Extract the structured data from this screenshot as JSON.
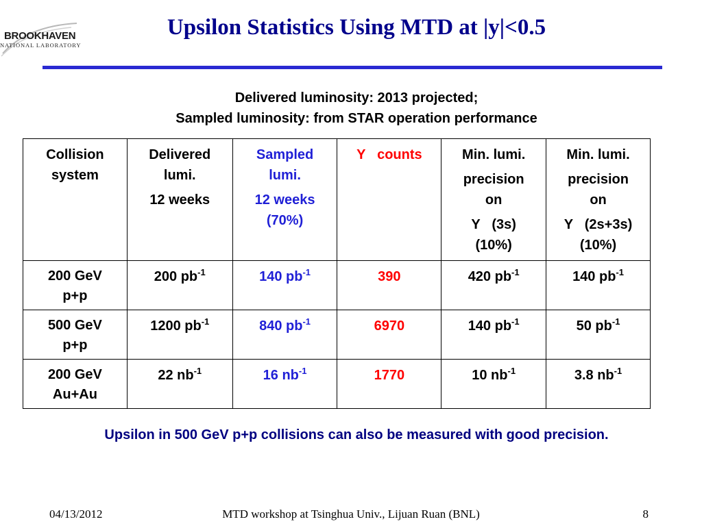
{
  "logo": {
    "main": "BROOKHAVEN",
    "sub": "NATIONAL LABORATORY"
  },
  "title": "Upsilon Statistics Using MTD at |y|<0.5",
  "subtitle": {
    "line1": "Delivered luminosity: 2013 projected;",
    "line2": "Sampled luminosity: from STAR operation performance"
  },
  "table": {
    "header": {
      "collision": [
        "Collision",
        "system"
      ],
      "delivered": [
        "Delivered",
        "lumi.",
        "12 weeks"
      ],
      "sampled": [
        "Sampled",
        "lumi.",
        "12 weeks",
        "(70%)"
      ],
      "counts": {
        "symbol": "Υ",
        "text": "counts"
      },
      "min1": [
        "Min. lumi.",
        "precision",
        "on",
        "Υ   (3s)",
        "(10%)"
      ],
      "min2": [
        "Min. lumi.",
        "precision",
        "on",
        "Υ   (2s+3s)",
        "(10%)"
      ]
    },
    "rows": [
      {
        "system": [
          "200 GeV",
          "p+p"
        ],
        "delivered": {
          "value": "200 pb",
          "exp": "-1"
        },
        "sampled": {
          "value": "140 pb",
          "exp": "-1"
        },
        "counts": "390",
        "min1": {
          "value": "420 pb",
          "exp": "-1"
        },
        "min2": {
          "value": "140 pb",
          "exp": "-1"
        }
      },
      {
        "system": [
          "500 GeV",
          "p+p"
        ],
        "delivered": {
          "value": "1200 pb",
          "exp": "-1"
        },
        "sampled": {
          "value": "840 pb",
          "exp": "-1"
        },
        "counts": "6970",
        "min1": {
          "value": "140 pb",
          "exp": "-1"
        },
        "min2": {
          "value": "50 pb",
          "exp": "-1"
        }
      },
      {
        "system": [
          "200 GeV",
          "Au+Au"
        ],
        "delivered": {
          "value": "22 nb",
          "exp": "-1"
        },
        "sampled": {
          "value": "16 nb",
          "exp": "-1"
        },
        "counts": "1770",
        "min1": {
          "value": "10 nb",
          "exp": "-1"
        },
        "min2": {
          "value": "3.8 nb",
          "exp": "-1"
        }
      }
    ]
  },
  "conclusion": "Upsilon in 500 GeV p+p collisions can also be measured with good precision.",
  "footer": {
    "date": "04/13/2012",
    "center": "MTD workshop at Tsinghua Univ., Lijuan Ruan (BNL)",
    "page": "8"
  },
  "colors": {
    "title": "#00008b",
    "rule": "#2a2ad2",
    "sampled": "#1f1fd6",
    "counts": "#ff0000",
    "conclusion": "#000080"
  }
}
